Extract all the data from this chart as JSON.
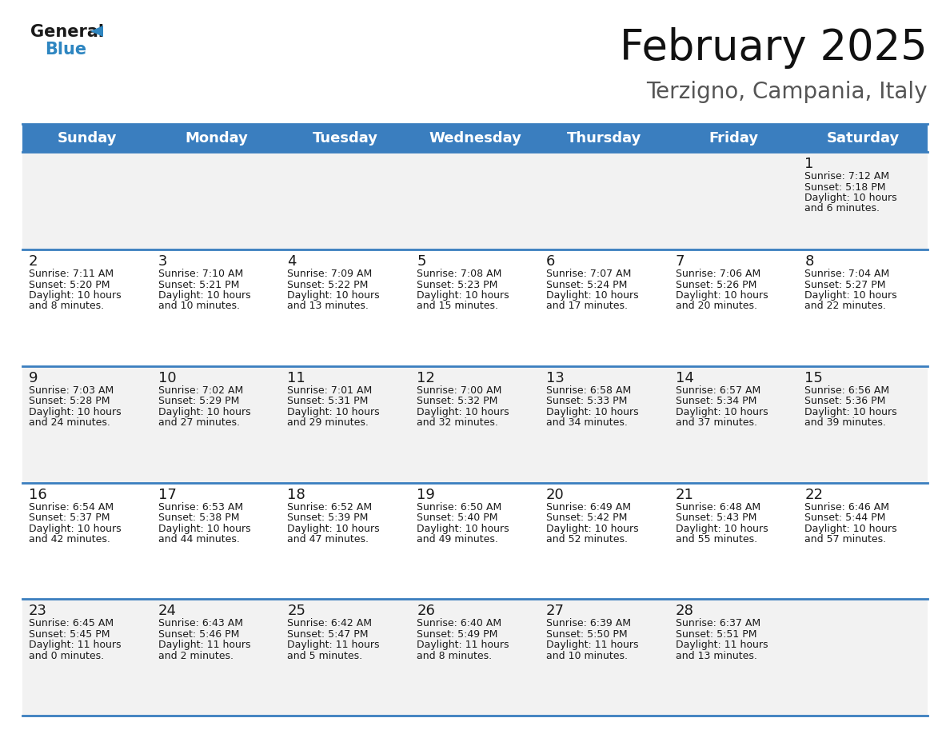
{
  "title": "February 2025",
  "subtitle": "Terzigno, Campania, Italy",
  "header_bg": "#3A7EBF",
  "header_text": "#FFFFFF",
  "day_names": [
    "Sunday",
    "Monday",
    "Tuesday",
    "Wednesday",
    "Thursday",
    "Friday",
    "Saturday"
  ],
  "title_font_size": 38,
  "subtitle_font_size": 20,
  "header_font_size": 13,
  "day_num_font_size": 13,
  "info_font_size": 9,
  "cell_bg_row0": "#F2F2F2",
  "cell_bg_row1": "#FFFFFF",
  "cell_bg_row2": "#F2F2F2",
  "cell_bg_row3": "#FFFFFF",
  "cell_bg_row4": "#F2F2F2",
  "line_color": "#3A7EBF",
  "text_color": "#1a1a1a",
  "logo_general_color": "#1a1a1a",
  "logo_blue_color": "#2E86C1",
  "logo_triangle_color": "#2E86C1",
  "days": [
    {
      "day": 1,
      "col": 6,
      "row": 0,
      "sunrise": "7:12 AM",
      "sunset": "5:18 PM",
      "daylight_h": "10 hours",
      "daylight_m": "and 6 minutes."
    },
    {
      "day": 2,
      "col": 0,
      "row": 1,
      "sunrise": "7:11 AM",
      "sunset": "5:20 PM",
      "daylight_h": "10 hours",
      "daylight_m": "and 8 minutes."
    },
    {
      "day": 3,
      "col": 1,
      "row": 1,
      "sunrise": "7:10 AM",
      "sunset": "5:21 PM",
      "daylight_h": "10 hours",
      "daylight_m": "and 10 minutes."
    },
    {
      "day": 4,
      "col": 2,
      "row": 1,
      "sunrise": "7:09 AM",
      "sunset": "5:22 PM",
      "daylight_h": "10 hours",
      "daylight_m": "and 13 minutes."
    },
    {
      "day": 5,
      "col": 3,
      "row": 1,
      "sunrise": "7:08 AM",
      "sunset": "5:23 PM",
      "daylight_h": "10 hours",
      "daylight_m": "and 15 minutes."
    },
    {
      "day": 6,
      "col": 4,
      "row": 1,
      "sunrise": "7:07 AM",
      "sunset": "5:24 PM",
      "daylight_h": "10 hours",
      "daylight_m": "and 17 minutes."
    },
    {
      "day": 7,
      "col": 5,
      "row": 1,
      "sunrise": "7:06 AM",
      "sunset": "5:26 PM",
      "daylight_h": "10 hours",
      "daylight_m": "and 20 minutes."
    },
    {
      "day": 8,
      "col": 6,
      "row": 1,
      "sunrise": "7:04 AM",
      "sunset": "5:27 PM",
      "daylight_h": "10 hours",
      "daylight_m": "and 22 minutes."
    },
    {
      "day": 9,
      "col": 0,
      "row": 2,
      "sunrise": "7:03 AM",
      "sunset": "5:28 PM",
      "daylight_h": "10 hours",
      "daylight_m": "and 24 minutes."
    },
    {
      "day": 10,
      "col": 1,
      "row": 2,
      "sunrise": "7:02 AM",
      "sunset": "5:29 PM",
      "daylight_h": "10 hours",
      "daylight_m": "and 27 minutes."
    },
    {
      "day": 11,
      "col": 2,
      "row": 2,
      "sunrise": "7:01 AM",
      "sunset": "5:31 PM",
      "daylight_h": "10 hours",
      "daylight_m": "and 29 minutes."
    },
    {
      "day": 12,
      "col": 3,
      "row": 2,
      "sunrise": "7:00 AM",
      "sunset": "5:32 PM",
      "daylight_h": "10 hours",
      "daylight_m": "and 32 minutes."
    },
    {
      "day": 13,
      "col": 4,
      "row": 2,
      "sunrise": "6:58 AM",
      "sunset": "5:33 PM",
      "daylight_h": "10 hours",
      "daylight_m": "and 34 minutes."
    },
    {
      "day": 14,
      "col": 5,
      "row": 2,
      "sunrise": "6:57 AM",
      "sunset": "5:34 PM",
      "daylight_h": "10 hours",
      "daylight_m": "and 37 minutes."
    },
    {
      "day": 15,
      "col": 6,
      "row": 2,
      "sunrise": "6:56 AM",
      "sunset": "5:36 PM",
      "daylight_h": "10 hours",
      "daylight_m": "and 39 minutes."
    },
    {
      "day": 16,
      "col": 0,
      "row": 3,
      "sunrise": "6:54 AM",
      "sunset": "5:37 PM",
      "daylight_h": "10 hours",
      "daylight_m": "and 42 minutes."
    },
    {
      "day": 17,
      "col": 1,
      "row": 3,
      "sunrise": "6:53 AM",
      "sunset": "5:38 PM",
      "daylight_h": "10 hours",
      "daylight_m": "and 44 minutes."
    },
    {
      "day": 18,
      "col": 2,
      "row": 3,
      "sunrise": "6:52 AM",
      "sunset": "5:39 PM",
      "daylight_h": "10 hours",
      "daylight_m": "and 47 minutes."
    },
    {
      "day": 19,
      "col": 3,
      "row": 3,
      "sunrise": "6:50 AM",
      "sunset": "5:40 PM",
      "daylight_h": "10 hours",
      "daylight_m": "and 49 minutes."
    },
    {
      "day": 20,
      "col": 4,
      "row": 3,
      "sunrise": "6:49 AM",
      "sunset": "5:42 PM",
      "daylight_h": "10 hours",
      "daylight_m": "and 52 minutes."
    },
    {
      "day": 21,
      "col": 5,
      "row": 3,
      "sunrise": "6:48 AM",
      "sunset": "5:43 PM",
      "daylight_h": "10 hours",
      "daylight_m": "and 55 minutes."
    },
    {
      "day": 22,
      "col": 6,
      "row": 3,
      "sunrise": "6:46 AM",
      "sunset": "5:44 PM",
      "daylight_h": "10 hours",
      "daylight_m": "and 57 minutes."
    },
    {
      "day": 23,
      "col": 0,
      "row": 4,
      "sunrise": "6:45 AM",
      "sunset": "5:45 PM",
      "daylight_h": "11 hours",
      "daylight_m": "and 0 minutes."
    },
    {
      "day": 24,
      "col": 1,
      "row": 4,
      "sunrise": "6:43 AM",
      "sunset": "5:46 PM",
      "daylight_h": "11 hours",
      "daylight_m": "and 2 minutes."
    },
    {
      "day": 25,
      "col": 2,
      "row": 4,
      "sunrise": "6:42 AM",
      "sunset": "5:47 PM",
      "daylight_h": "11 hours",
      "daylight_m": "and 5 minutes."
    },
    {
      "day": 26,
      "col": 3,
      "row": 4,
      "sunrise": "6:40 AM",
      "sunset": "5:49 PM",
      "daylight_h": "11 hours",
      "daylight_m": "and 8 minutes."
    },
    {
      "day": 27,
      "col": 4,
      "row": 4,
      "sunrise": "6:39 AM",
      "sunset": "5:50 PM",
      "daylight_h": "11 hours",
      "daylight_m": "and 10 minutes."
    },
    {
      "day": 28,
      "col": 5,
      "row": 4,
      "sunrise": "6:37 AM",
      "sunset": "5:51 PM",
      "daylight_h": "11 hours",
      "daylight_m": "and 13 minutes."
    }
  ]
}
